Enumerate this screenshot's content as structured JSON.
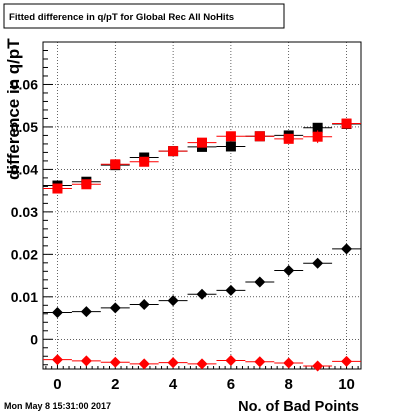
{
  "chart_data": {
    "type": "scatter",
    "title": "Fitted difference in q/pT  for Global Rec All NoHits",
    "xlabel": "No. of Bad Points",
    "ylabel": "difference in q/pT",
    "xlim": [
      -0.5,
      10.5
    ],
    "ylim": [
      -0.007,
      0.07
    ],
    "x_ticks": [
      0,
      2,
      4,
      6,
      8,
      10
    ],
    "y_ticks": [
      0,
      0.01,
      0.02,
      0.03,
      0.04,
      0.05,
      0.06
    ],
    "x_tick_labels": [
      "0",
      "2",
      "4",
      "6",
      "8",
      "10"
    ],
    "y_tick_labels": [
      "0",
      "0.01",
      "0.02",
      "0.03",
      "0.04",
      "0.05",
      "0.06"
    ],
    "grid": true,
    "series": [
      {
        "marker": "square",
        "color": "#000000",
        "x": [
          0,
          1,
          2,
          3,
          4,
          5,
          6,
          7,
          8,
          9,
          10
        ],
        "y": [
          0.0362,
          0.0371,
          0.041,
          0.0428,
          0.0443,
          0.0453,
          0.0454,
          0.0478,
          0.048,
          0.0498,
          0.0507
        ],
        "yerr": [
          0.0005,
          0.0005,
          0.0005,
          0.0005,
          0.0005,
          0.0005,
          0.0005,
          0.0008,
          0.0008,
          0.0008,
          0.0008
        ]
      },
      {
        "marker": "square",
        "color": "#ff0000",
        "x": [
          0,
          1,
          2,
          3,
          4,
          5,
          6,
          7,
          8,
          9,
          10
        ],
        "y": [
          0.0355,
          0.0365,
          0.0412,
          0.0418,
          0.0443,
          0.0463,
          0.0478,
          0.0478,
          0.0472,
          0.0477,
          0.0508
        ],
        "yerr": [
          0.0005,
          0.0005,
          0.0005,
          0.0005,
          0.0005,
          0.0005,
          0.0005,
          0.0008,
          0.0008,
          0.0015,
          0.0008
        ]
      },
      {
        "marker": "diamond",
        "color": "#000000",
        "x": [
          0,
          1,
          2,
          3,
          4,
          5,
          6,
          7,
          8,
          9,
          10
        ],
        "y": [
          0.0063,
          0.0065,
          0.0074,
          0.0082,
          0.0091,
          0.0106,
          0.0115,
          0.0135,
          0.0162,
          0.0179,
          0.0213
        ],
        "yerr": [
          0.0003,
          0.0003,
          0.0003,
          0.0003,
          0.0003,
          0.0003,
          0.0003,
          0.0004,
          0.0004,
          0.0004,
          0.0005
        ]
      },
      {
        "marker": "diamond",
        "color": "#ff0000",
        "x": [
          0,
          1,
          2,
          3,
          4,
          5,
          6,
          7,
          8,
          9,
          10
        ],
        "y": [
          -0.0048,
          -0.0051,
          -0.0054,
          -0.0058,
          -0.0055,
          -0.0058,
          -0.005,
          -0.0053,
          -0.0056,
          -0.0063,
          -0.0052
        ],
        "yerr": [
          0.0003,
          0.0003,
          0.0003,
          0.0003,
          0.0003,
          0.0003,
          0.0003,
          0.0003,
          0.0003,
          0.0003,
          0.0003
        ]
      }
    ]
  },
  "timestamp": "Mon May  8 15:31:00 2017"
}
